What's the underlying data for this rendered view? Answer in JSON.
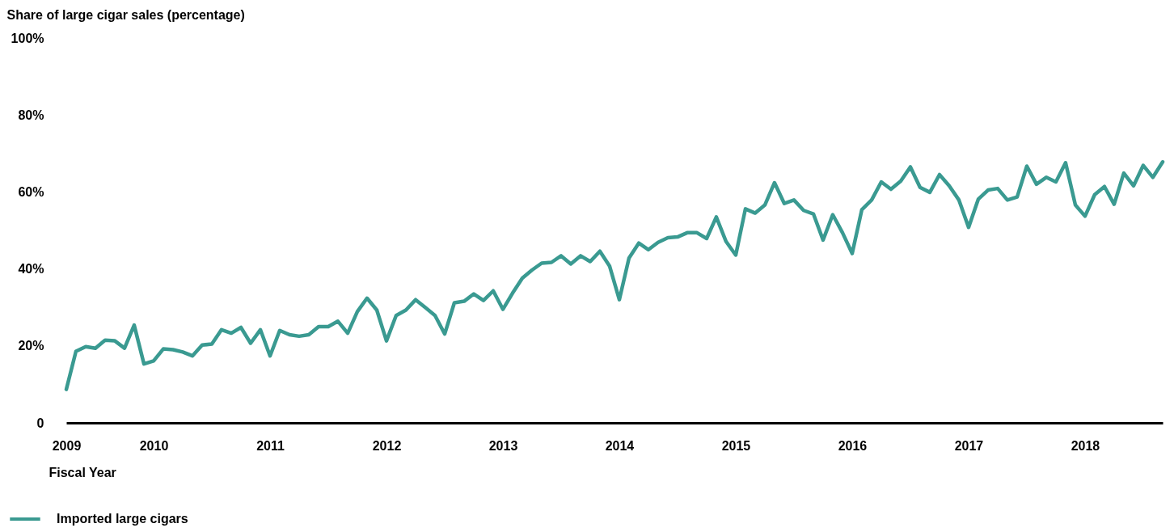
{
  "chart_data": {
    "type": "line",
    "ylabel": "Share of large cigar sales (percentage)",
    "xlabel": "Fiscal Year",
    "legend": "bottom left",
    "x": [
      2009.25,
      2009.333,
      2009.417,
      2009.5,
      2009.583,
      2009.667,
      2009.75,
      2009.833,
      2009.917,
      2010,
      2010.083,
      2010.167,
      2010.25,
      2010.333,
      2010.417,
      2010.5,
      2010.583,
      2010.667,
      2010.75,
      2010.833,
      2010.917,
      2011,
      2011.083,
      2011.167,
      2011.25,
      2011.333,
      2011.417,
      2011.5,
      2011.583,
      2011.667,
      2011.75,
      2011.833,
      2011.917,
      2012,
      2012.083,
      2012.167,
      2012.25,
      2012.333,
      2012.417,
      2012.5,
      2012.583,
      2012.667,
      2012.75,
      2012.833,
      2012.917,
      2013,
      2013.083,
      2013.167,
      2013.25,
      2013.333,
      2013.417,
      2013.5,
      2013.583,
      2013.667,
      2013.75,
      2013.833,
      2013.917,
      2014,
      2014.083,
      2014.167,
      2014.25,
      2014.333,
      2014.417,
      2014.5,
      2014.583,
      2014.667,
      2014.75,
      2014.833,
      2014.917,
      2015,
      2015.083,
      2015.167,
      2015.25,
      2015.333,
      2015.417,
      2015.5,
      2015.583,
      2015.667,
      2015.75,
      2015.833,
      2015.917,
      2016,
      2016.083,
      2016.167,
      2016.25,
      2016.333,
      2016.417,
      2016.5,
      2016.583,
      2016.667,
      2016.75,
      2016.833,
      2016.917,
      2017,
      2017.083,
      2017.167,
      2017.25,
      2017.333,
      2017.417,
      2017.5,
      2017.583,
      2017.667,
      2017.75,
      2017.833,
      2017.917,
      2018,
      2018.083,
      2018.167,
      2018.25,
      2018.333,
      2018.417,
      2018.5,
      2018.583,
      2018.667
    ],
    "series": [
      {
        "name": "Imported large cigars",
        "color": "#3a9a91",
        "values": [
          8.7,
          18.6,
          19.8,
          19.4,
          21.5,
          21.3,
          19.4,
          25.4,
          15.3,
          16.1,
          19.2,
          19.0,
          18.4,
          17.4,
          20.2,
          20.5,
          24.2,
          23.3,
          24.8,
          20.7,
          24.2,
          17.4,
          24.0,
          22.9,
          22.5,
          22.9,
          25.0,
          25.0,
          26.4,
          23.3,
          28.9,
          32.4,
          29.3,
          21.3,
          27.9,
          29.3,
          32.0,
          30.0,
          27.9,
          23.1,
          31.2,
          31.6,
          33.5,
          31.8,
          34.3,
          29.5,
          33.7,
          37.6,
          39.7,
          41.5,
          41.7,
          43.4,
          41.3,
          43.4,
          41.9,
          44.6,
          40.7,
          32.0,
          42.8,
          46.7,
          45.0,
          46.9,
          48.1,
          48.3,
          49.4,
          49.4,
          47.9,
          53.5,
          47.1,
          43.6,
          55.6,
          54.5,
          56.6,
          62.4,
          57.0,
          57.9,
          55.2,
          54.3,
          47.5,
          54.1,
          49.4,
          44.0,
          55.4,
          57.9,
          62.6,
          60.7,
          62.8,
          66.5,
          61.2,
          59.9,
          64.5,
          61.6,
          57.9,
          50.8,
          58.1,
          60.5,
          60.9,
          57.9,
          58.7,
          66.7,
          62.0,
          63.8,
          62.6,
          67.6,
          56.6,
          53.7,
          59.3,
          61.4,
          56.8,
          64.9,
          61.6,
          66.9,
          63.8,
          67.8
        ]
      }
    ],
    "xlim": [
      2009.25,
      2018.667
    ],
    "xticks": [
      {
        "value": 2009.25,
        "label": "2009"
      },
      2010,
      2011,
      2012,
      2013,
      2014,
      2015,
      2016,
      2017,
      2018
    ],
    "ylim": [
      0,
      100
    ],
    "yticks": [
      0,
      {
        "value": 20,
        "label": "20%"
      },
      {
        "value": 40,
        "label": "40%"
      },
      {
        "value": 60,
        "label": "60%"
      },
      {
        "value": 80,
        "label": "80%"
      },
      {
        "value": 100,
        "label": "100%"
      }
    ]
  }
}
